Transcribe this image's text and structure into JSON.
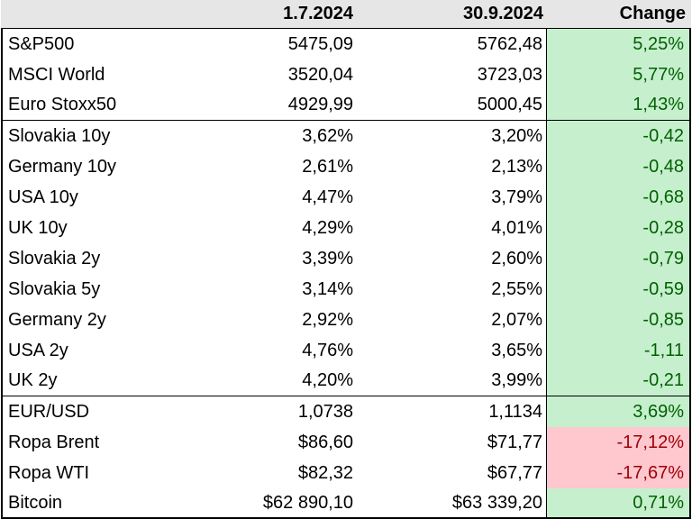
{
  "columns": [
    "",
    "1.7.2024",
    "30.9.2024",
    "Change"
  ],
  "groups": [
    [
      {
        "name": "S&P500",
        "start": "5475,09",
        "end": "5762,48",
        "change": "5,25%",
        "status": "pos"
      },
      {
        "name": "MSCI World",
        "start": "3520,04",
        "end": "3723,03",
        "change": "5,77%",
        "status": "pos"
      },
      {
        "name": "Euro Stoxx50",
        "start": "4929,99",
        "end": "5000,45",
        "change": "1,43%",
        "status": "pos"
      }
    ],
    [
      {
        "name": "Slovakia 10y",
        "start": "3,62%",
        "end": "3,20%",
        "change": "-0,42",
        "status": "pos"
      },
      {
        "name": "Germany 10y",
        "start": "2,61%",
        "end": "2,13%",
        "change": "-0,48",
        "status": "pos"
      },
      {
        "name": "USA 10y",
        "start": "4,47%",
        "end": "3,79%",
        "change": "-0,68",
        "status": "pos"
      },
      {
        "name": "UK 10y",
        "start": "4,29%",
        "end": "4,01%",
        "change": "-0,28",
        "status": "pos"
      },
      {
        "name": "Slovakia 2y",
        "start": "3,39%",
        "end": "2,60%",
        "change": "-0,79",
        "status": "pos"
      },
      {
        "name": "Slovakia 5y",
        "start": "3,14%",
        "end": "2,55%",
        "change": "-0,59",
        "status": "pos"
      },
      {
        "name": "Germany 2y",
        "start": "2,92%",
        "end": "2,07%",
        "change": "-0,85",
        "status": "pos"
      },
      {
        "name": "USA 2y",
        "start": "4,76%",
        "end": "3,65%",
        "change": "-1,11",
        "status": "pos"
      },
      {
        "name": "UK 2y",
        "start": "4,20%",
        "end": "3,99%",
        "change": "-0,21",
        "status": "pos"
      }
    ],
    [
      {
        "name": "EUR/USD",
        "start": "1,0738",
        "end": "1,1134",
        "change": "3,69%",
        "status": "pos"
      },
      {
        "name": "Ropa Brent",
        "start": "$86,60",
        "end": "$71,77",
        "change": "-17,12%",
        "status": "neg"
      },
      {
        "name": "Ropa WTI",
        "start": "$82,32",
        "end": "$67,77",
        "change": "-17,67%",
        "status": "neg"
      },
      {
        "name": "Bitcoin",
        "start": "$62 890,10",
        "end": "$63 339,20",
        "change": "0,71%",
        "status": "pos"
      }
    ]
  ],
  "colors": {
    "header_bg": "#e6e6e6",
    "positive_bg": "#c6efce",
    "positive_text": "#006100",
    "negative_bg": "#ffc7ce",
    "negative_text": "#9c0006"
  }
}
